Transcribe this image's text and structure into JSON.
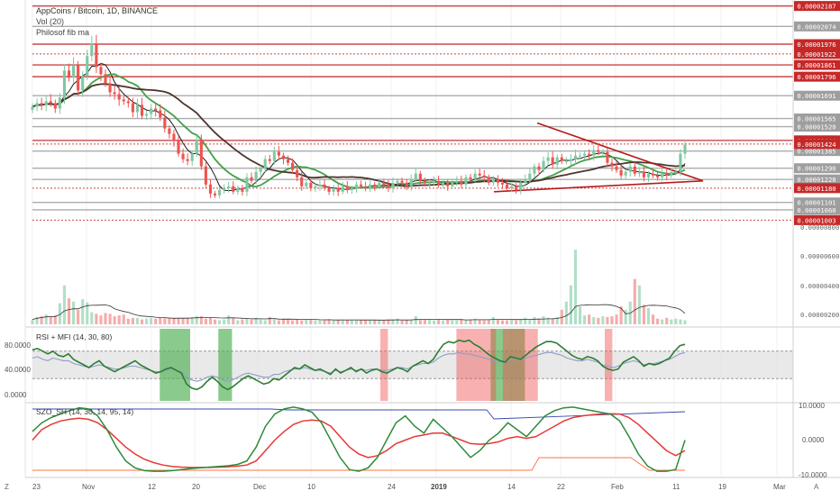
{
  "header": {
    "title": "AppCoins / Bitcoin, 1D, BINANCE",
    "line2": "Vol (20)",
    "line3": "Philosof fib ma"
  },
  "price_axis": {
    "grey_levels": [
      "0.00002074",
      "0.00001691",
      "0.00001565",
      "0.00001520",
      "0.00001385",
      "0.00001290",
      "0.00001228",
      "0.00001101",
      "0.00001060"
    ],
    "red_levels": [
      "0.00002187",
      "0.00001976",
      "0.00001922",
      "0.00001861",
      "0.00001796",
      "0.00001444",
      "0.00001424",
      "0.00001180",
      "0.00001003"
    ],
    "volume_ticks": [
      "0.00000800",
      "0.00000600",
      "0.00000400",
      "0.00000200"
    ]
  },
  "rsi_pane": {
    "label": "RSI + MFI (14, 30, 80)",
    "ticks": [
      "80.0000",
      "40.0000",
      "0.0000"
    ]
  },
  "szo_pane": {
    "label": "SZO_SH (14, 30, 14, 95, 14)",
    "ticks": [
      "10.0000",
      "0.0000",
      "-10.0000"
    ]
  },
  "time_axis": {
    "labels": [
      "23",
      "Nov",
      "12",
      "20",
      "Dec",
      "10",
      "24",
      "2019",
      "14",
      "22",
      "Feb",
      "11",
      "19",
      "Mar"
    ],
    "corner_left": "Z",
    "corner_right": "A"
  },
  "colors": {
    "up": "#7ec9a2",
    "down": "#ef5350",
    "level_red": "#c62828",
    "level_grey": "#9e9e9e",
    "ma_fast": "#1b1b1b",
    "ma_mid": "#43a047",
    "ma_slow": "#4e342e",
    "triangle": "#b71c1c",
    "rsi": "#2e7d32",
    "mfi": "#8e9cc9",
    "szo_green": "#2e8b3a",
    "szo_red": "#e53935",
    "szo_blue": "#3949ab",
    "szo_orange": "#ff7043"
  },
  "chart_data": {
    "type": "candlestick",
    "symbol": "AppCoins / Bitcoin",
    "timeframe": "1D",
    "exchange": "BINANCE",
    "y_axis_range": [
      9.5e-06,
      2.22e-05
    ],
    "closes": [
      1.63e-05,
      1.65e-05,
      1.64e-05,
      1.66e-05,
      1.65e-05,
      1.62e-05,
      1.68e-05,
      1.83e-05,
      1.79e-05,
      1.86e-05,
      1.72e-05,
      1.8e-05,
      1.91e-05,
      1.98e-05,
      1.85e-05,
      1.81e-05,
      1.76e-05,
      1.71e-05,
      1.7e-05,
      1.67e-05,
      1.66e-05,
      1.65e-05,
      1.6e-05,
      1.64e-05,
      1.58e-05,
      1.59e-05,
      1.62e-05,
      1.61e-05,
      1.57e-05,
      1.51e-05,
      1.48e-05,
      1.44e-05,
      1.37e-05,
      1.34e-05,
      1.33e-05,
      1.37e-05,
      1.45e-05,
      1.3e-05,
      1.2e-05,
      1.15e-05,
      1.14e-05,
      1.17e-05,
      1.18e-05,
      1.19e-05,
      1.16e-05,
      1.18e-05,
      1.16e-05,
      1.24e-05,
      1.22e-05,
      1.27e-05,
      1.29e-05,
      1.34e-05,
      1.33e-05,
      1.38e-05,
      1.36e-05,
      1.34e-05,
      1.32e-05,
      1.28e-05,
      1.24e-05,
      1.19e-05,
      1.21e-05,
      1.18e-05,
      1.19e-05,
      1.2e-05,
      1.18e-05,
      1.16e-05,
      1.18e-05,
      1.16e-05,
      1.19e-05,
      1.17e-05,
      1.18e-05,
      1.2e-05,
      1.19e-05,
      1.18e-05,
      1.2e-05,
      1.19e-05,
      1.21e-05,
      1.2e-05,
      1.18e-05,
      1.21e-05,
      1.22e-05,
      1.21e-05,
      1.19e-05,
      1.23e-05,
      1.26e-05,
      1.22e-05,
      1.21e-05,
      1.21e-05,
      1.22e-05,
      1.2e-05,
      1.21e-05,
      1.19e-05,
      1.21e-05,
      1.22e-05,
      1.2e-05,
      1.24e-05,
      1.23e-05,
      1.26e-05,
      1.25e-05,
      1.24e-05,
      1.21e-05,
      1.23e-05,
      1.21e-05,
      1.2e-05,
      1.18e-05,
      1.19e-05,
      1.17e-05,
      1.21e-05,
      1.23e-05,
      1.26e-05,
      1.3e-05,
      1.28e-05,
      1.33e-05,
      1.35e-05,
      1.31e-05,
      1.35e-05,
      1.33e-05,
      1.33e-05,
      1.34e-05,
      1.36e-05,
      1.36e-05,
      1.37e-05,
      1.36e-05,
      1.39e-05,
      1.38e-05,
      1.38e-05,
      1.32e-05,
      1.3e-05,
      1.28e-05,
      1.25e-05,
      1.27e-05,
      1.3e-05,
      1.26e-05,
      1.27e-05,
      1.24e-05,
      1.26e-05,
      1.25e-05,
      1.24e-05,
      1.26e-05,
      1.25e-05,
      1.27e-05,
      1.27e-05,
      1.37e-05,
      1.42e-05
    ],
    "volume_rel": [
      0.06,
      0.09,
      0.1,
      0.12,
      0.1,
      0.11,
      0.26,
      0.48,
      0.32,
      0.28,
      0.18,
      0.31,
      0.27,
      0.15,
      0.13,
      0.11,
      0.14,
      0.13,
      0.1,
      0.11,
      0.12,
      0.07,
      0.08,
      0.08,
      0.06,
      0.07,
      0.08,
      0.07,
      0.08,
      0.07,
      0.08,
      0.08,
      0.08,
      0.08,
      0.08,
      0.09,
      0.1,
      0.1,
      0.07,
      0.08,
      0.06,
      0.05,
      0.06,
      0.11,
      0.08,
      0.05,
      0.06,
      0.07,
      0.06,
      0.08,
      0.06,
      0.05,
      0.09,
      0.06,
      0.05,
      0.07,
      0.06,
      0.05,
      0.06,
      0.05,
      0.06,
      0.06,
      0.05,
      0.05,
      0.05,
      0.06,
      0.05,
      0.05,
      0.06,
      0.05,
      0.06,
      0.06,
      0.05,
      0.05,
      0.05,
      0.05,
      0.05,
      0.05,
      0.06,
      0.06,
      0.07,
      0.05,
      0.05,
      0.06,
      0.1,
      0.05,
      0.06,
      0.06,
      0.05,
      0.06,
      0.05,
      0.06,
      0.05,
      0.05,
      0.06,
      0.05,
      0.06,
      0.07,
      0.06,
      0.05,
      0.06,
      0.09,
      0.06,
      0.05,
      0.05,
      0.05,
      0.05,
      0.06,
      0.08,
      0.06,
      0.09,
      0.07,
      0.1,
      0.08,
      0.07,
      0.09,
      0.18,
      0.28,
      0.48,
      0.92,
      0.22,
      0.11,
      0.12,
      0.09,
      0.08,
      0.1,
      0.09,
      0.1,
      0.12,
      0.22,
      0.18,
      0.28,
      0.56,
      0.48,
      0.24,
      0.2,
      0.12,
      0.07,
      0.06,
      0.08,
      0.06,
      0.07,
      0.06,
      0.05
    ],
    "time_labels": [
      "23",
      "Nov",
      "12",
      "20",
      "Dec",
      "10",
      "24",
      "2019",
      "14",
      "22",
      "Feb",
      "11",
      "19",
      "Mar"
    ],
    "price_levels_red": [
      2.187e-05,
      1.976e-05,
      1.922e-05,
      1.861e-05,
      1.796e-05,
      1.444e-05,
      1.424e-05,
      1.18e-05,
      1.003e-05
    ],
    "price_levels_grey": [
      2.074e-05,
      1.691e-05,
      1.565e-05,
      1.52e-05,
      1.385e-05,
      1.29e-05,
      1.228e-05,
      1.101e-05,
      1.06e-05
    ],
    "volume_axis_ticks": [
      8e-06,
      6e-06,
      4e-06,
      2e-06
    ],
    "rsi_mfi": {
      "params": "14, 30, 80",
      "rsi": [
        72,
        74,
        70,
        66,
        70,
        64,
        62,
        66,
        58,
        54,
        50,
        46,
        52,
        56,
        48,
        44,
        40,
        44,
        48,
        52,
        56,
        50,
        46,
        42,
        38,
        40,
        44,
        46,
        42,
        38,
        22,
        16,
        14,
        18,
        26,
        32,
        26,
        18,
        14,
        18,
        24,
        30,
        34,
        30,
        26,
        22,
        24,
        30,
        28,
        34,
        40,
        46,
        44,
        50,
        46,
        42,
        44,
        40,
        36,
        44,
        38,
        42,
        46,
        40,
        44,
        38,
        42,
        44,
        40,
        38,
        42,
        46,
        44,
        40,
        48,
        52,
        56,
        52,
        58,
        70,
        80,
        84,
        82,
        86,
        84,
        86,
        80,
        76,
        70,
        64,
        60,
        56,
        54,
        62,
        60,
        58,
        64,
        70,
        76,
        80,
        84,
        84,
        82,
        76,
        70,
        64,
        60,
        58,
        62,
        60,
        56,
        48,
        44,
        42,
        44,
        54,
        58,
        62,
        56,
        48,
        52,
        50,
        52,
        56,
        60,
        70,
        78,
        80
      ],
      "mfi": [
        60,
        62,
        58,
        56,
        60,
        58,
        56,
        56,
        52,
        50,
        48,
        46,
        48,
        50,
        48,
        46,
        44,
        44,
        46,
        48,
        48,
        46,
        44,
        42,
        40,
        40,
        42,
        44,
        42,
        40,
        32,
        28,
        26,
        28,
        32,
        34,
        32,
        28,
        26,
        28,
        32,
        36,
        38,
        36,
        34,
        32,
        32,
        36,
        36,
        40,
        42,
        44,
        44,
        46,
        44,
        42,
        42,
        40,
        38,
        42,
        40,
        42,
        44,
        42,
        44,
        42,
        44,
        44,
        42,
        42,
        44,
        46,
        46,
        44,
        48,
        50,
        52,
        52,
        54,
        60,
        64,
        66,
        66,
        68,
        66,
        66,
        64,
        62,
        60,
        58,
        56,
        54,
        54,
        58,
        58,
        58,
        60,
        62,
        64,
        66,
        68,
        68,
        66,
        64,
        60,
        58,
        56,
        56,
        58,
        56,
        54,
        50,
        48,
        46,
        48,
        52,
        54,
        56,
        54,
        50,
        52,
        52,
        54,
        56,
        58,
        62,
        66,
        68
      ],
      "oversold_zones": [
        [
          0.21,
          0.25
        ],
        [
          0.287,
          0.305
        ],
        [
          0.645,
          0.69
        ]
      ],
      "overbought_zones": [
        [
          0.5,
          0.51
        ],
        [
          0.6,
          0.652
        ],
        [
          0.661,
          0.707
        ],
        [
          0.795,
          0.805
        ]
      ]
    },
    "szo": {
      "params": "14, 30, 14, 95, 14",
      "green": [
        2.5,
        5.0,
        6.5,
        7.5,
        8.5,
        9.3,
        9.0,
        7.0,
        3.0,
        -2.0,
        -6.0,
        -8.0,
        -8.8,
        -9.0,
        -9.0,
        -8.8,
        -8.5,
        -8.2,
        -8.0,
        -7.8,
        -7.6,
        -7.4,
        -7.0,
        -6.0,
        -2.0,
        4.0,
        7.5,
        9.0,
        9.5,
        9.0,
        8.0,
        5.0,
        0.0,
        -5.0,
        -8.5,
        -9.0,
        -8.0,
        -5.0,
        0.0,
        5.0,
        7.0,
        4.0,
        2.0,
        6.0,
        3.5,
        1.0,
        -2.0,
        -5.0,
        -3.0,
        0.0,
        2.0,
        5.0,
        3.0,
        1.0,
        4.0,
        7.0,
        8.5,
        9.3,
        9.5,
        9.0,
        8.5,
        8.0,
        7.5,
        5.5,
        1.0,
        -4.0,
        -7.5,
        -9.0,
        -9.0,
        -8.5,
        0.0
      ],
      "red": [
        0.0,
        3.0,
        4.5,
        5.5,
        6.0,
        6.3,
        6.0,
        5.0,
        3.0,
        0.5,
        -2.0,
        -4.0,
        -5.5,
        -6.5,
        -7.2,
        -7.6,
        -7.8,
        -7.9,
        -7.9,
        -7.9,
        -7.8,
        -7.7,
        -7.5,
        -7.2,
        -6.0,
        -3.0,
        0.0,
        2.5,
        4.5,
        5.5,
        5.8,
        5.5,
        4.0,
        1.0,
        -2.0,
        -4.0,
        -5.0,
        -4.5,
        -3.0,
        -1.0,
        0.0,
        1.0,
        1.5,
        2.0,
        2.0,
        1.0,
        0.0,
        -1.0,
        -1.2,
        -1.0,
        -0.5,
        0.5,
        1.0,
        0.5,
        1.0,
        2.5,
        4.0,
        5.5,
        6.5,
        7.0,
        7.3,
        7.5,
        7.6,
        7.5,
        6.5,
        4.5,
        2.0,
        -0.5,
        -3.0,
        -4.5,
        -3.0
      ],
      "y_range": [
        -10,
        10
      ]
    }
  }
}
